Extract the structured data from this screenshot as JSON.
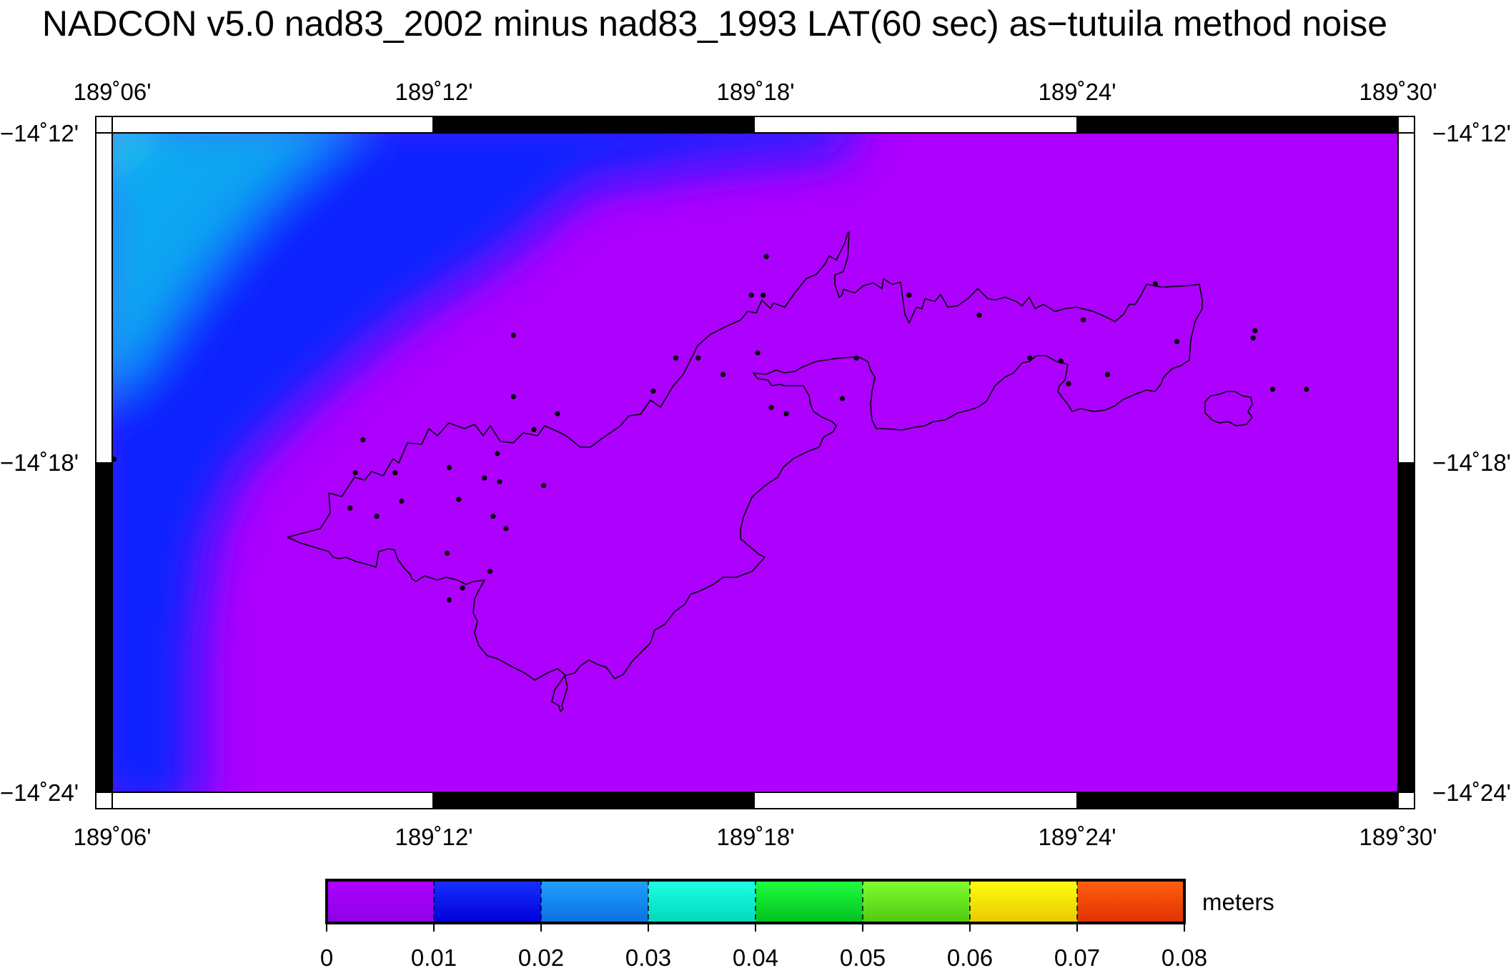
{
  "title": "NADCON v5.0 nad83_2002 minus nad83_1993 LAT(60 sec) as−tutuila method noise",
  "axes": {
    "x_ticks": [
      "189˚06'",
      "189˚12'",
      "189˚18'",
      "189˚24'",
      "189˚30'"
    ],
    "y_ticks": [
      "−14˚12'",
      "−14˚18'",
      "−14˚24'"
    ]
  },
  "colorbar": {
    "unit_label": "meters",
    "ticks": [
      "0",
      "0.01",
      "0.02",
      "0.03",
      "0.04",
      "0.05",
      "0.06",
      "0.07",
      "0.08"
    ],
    "colors": [
      "#a000ff",
      "#0a10ff",
      "#1890ff",
      "#10f0d8",
      "#10dd30",
      "#60e820",
      "#ffec00",
      "#ff4a00"
    ]
  },
  "colors": {
    "background_field": "#ad00ff",
    "blue_region": "#0a22ff",
    "cyan_region": "#10a6f2"
  },
  "chart_data": {
    "type": "heatmap",
    "title": "NADCON v5.0 nad83_2002 minus nad83_1993 LAT(60 sec) as−tutuila method noise",
    "xlim": [
      189.1,
      189.5
    ],
    "ylim": [
      -14.4,
      -14.2
    ],
    "colorbar_range": [
      0,
      0.08
    ],
    "unit": "meters",
    "field_description_values": {
      "dominant_value_range": [
        0.0,
        0.01
      ],
      "northwest_max_range": [
        0.02,
        0.03
      ]
    },
    "stations": [
      {
        "lon": 189.4245,
        "lat": -14.2458
      },
      {
        "lon": 189.3035,
        "lat": -14.2375
      },
      {
        "lon": 189.2988,
        "lat": -14.2492
      },
      {
        "lon": 189.3025,
        "lat": -14.2492
      },
      {
        "lon": 189.3479,
        "lat": -14.2492
      },
      {
        "lon": 189.3697,
        "lat": -14.2553
      },
      {
        "lon": 189.4021,
        "lat": -14.2567
      },
      {
        "lon": 189.4555,
        "lat": -14.26
      },
      {
        "lon": 189.4549,
        "lat": -14.2622
      },
      {
        "lon": 189.4312,
        "lat": -14.2633
      },
      {
        "lon": 189.2248,
        "lat": -14.2614
      },
      {
        "lon": 189.2753,
        "lat": -14.2683
      },
      {
        "lon": 189.2823,
        "lat": -14.2683
      },
      {
        "lon": 189.3008,
        "lat": -14.2667
      },
      {
        "lon": 189.3315,
        "lat": -14.2683
      },
      {
        "lon": 189.3855,
        "lat": -14.2683
      },
      {
        "lon": 189.3951,
        "lat": -14.2692
      },
      {
        "lon": 189.29,
        "lat": -14.2733
      },
      {
        "lon": 189.3975,
        "lat": -14.2761
      },
      {
        "lon": 189.4096,
        "lat": -14.2733
      },
      {
        "lon": 189.461,
        "lat": -14.2778
      },
      {
        "lon": 189.4715,
        "lat": -14.2778
      },
      {
        "lon": 189.2683,
        "lat": -14.2783
      },
      {
        "lon": 189.2248,
        "lat": -14.28
      },
      {
        "lon": 189.305,
        "lat": -14.2833
      },
      {
        "lon": 189.3271,
        "lat": -14.2806
      },
      {
        "lon": 189.3097,
        "lat": -14.2852
      },
      {
        "lon": 189.2385,
        "lat": -14.2852
      },
      {
        "lon": 189.2312,
        "lat": -14.29
      },
      {
        "lon": 189.178,
        "lat": -14.2931
      },
      {
        "lon": 189.2198,
        "lat": -14.2973
      },
      {
        "lon": 189.1006,
        "lat": -14.299
      },
      {
        "lon": 189.2048,
        "lat": -14.3015
      },
      {
        "lon": 189.1756,
        "lat": -14.3031
      },
      {
        "lon": 189.188,
        "lat": -14.3031
      },
      {
        "lon": 189.2158,
        "lat": -14.3047
      },
      {
        "lon": 189.2205,
        "lat": -14.3058
      },
      {
        "lon": 189.2342,
        "lat": -14.307
      },
      {
        "lon": 189.2078,
        "lat": -14.3112
      },
      {
        "lon": 189.19,
        "lat": -14.3117
      },
      {
        "lon": 189.174,
        "lat": -14.3138
      },
      {
        "lon": 189.1823,
        "lat": -14.3163
      },
      {
        "lon": 189.2185,
        "lat": -14.3163
      },
      {
        "lon": 189.2225,
        "lat": -14.32
      },
      {
        "lon": 189.2042,
        "lat": -14.3275
      },
      {
        "lon": 189.2175,
        "lat": -14.333
      },
      {
        "lon": 189.209,
        "lat": -14.338
      },
      {
        "lon": 189.2048,
        "lat": -14.3417
      }
    ]
  }
}
